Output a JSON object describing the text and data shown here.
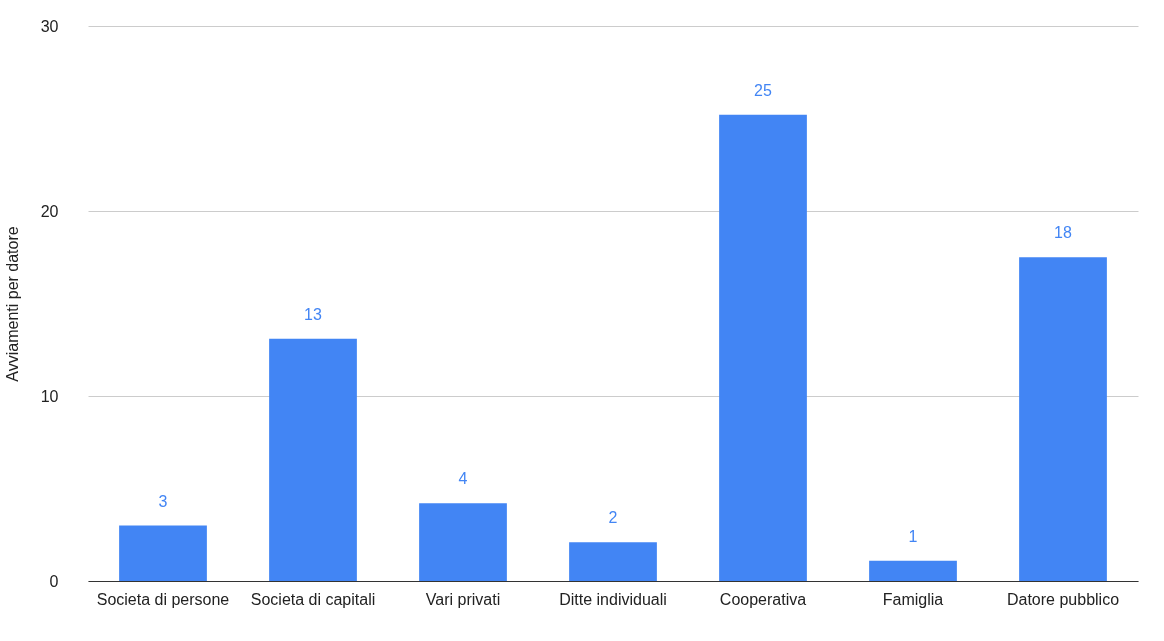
{
  "chart_data": {
    "type": "bar",
    "ylabel": "Avviamenti per datore",
    "categories": [
      "Societa di persone",
      "Societa di capitali",
      "Vari privati",
      "Ditte individuali",
      "Cooperativa",
      "Famiglia",
      "Datore pubblico"
    ],
    "values": [
      3.0,
      13.1,
      4.2,
      2.1,
      25.2,
      1.1,
      17.5
    ],
    "value_labels": [
      "3",
      "13",
      "4",
      "2",
      "25",
      "1",
      "18"
    ],
    "color": "#4285f4",
    "ylim": [
      0,
      30
    ],
    "yticks": [
      0,
      10,
      20,
      30
    ],
    "grid": "y"
  }
}
